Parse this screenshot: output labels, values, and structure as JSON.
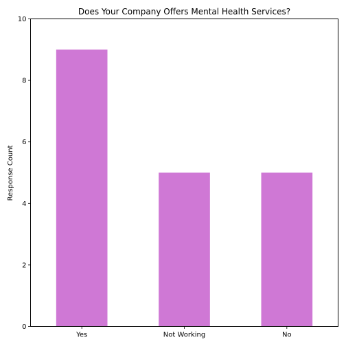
{
  "chart_data": {
    "type": "bar",
    "title": "Does Your Company Offers Mental Health Services?",
    "xlabel": "",
    "ylabel": "Response Count",
    "categories": [
      "Yes",
      "Not Working",
      "No"
    ],
    "values": [
      9,
      5,
      5
    ],
    "ylim": [
      0,
      10
    ],
    "yticks": [
      0,
      2,
      4,
      6,
      8,
      10
    ],
    "bar_color": "#cf78d5",
    "grid": false,
    "legend": "none"
  }
}
